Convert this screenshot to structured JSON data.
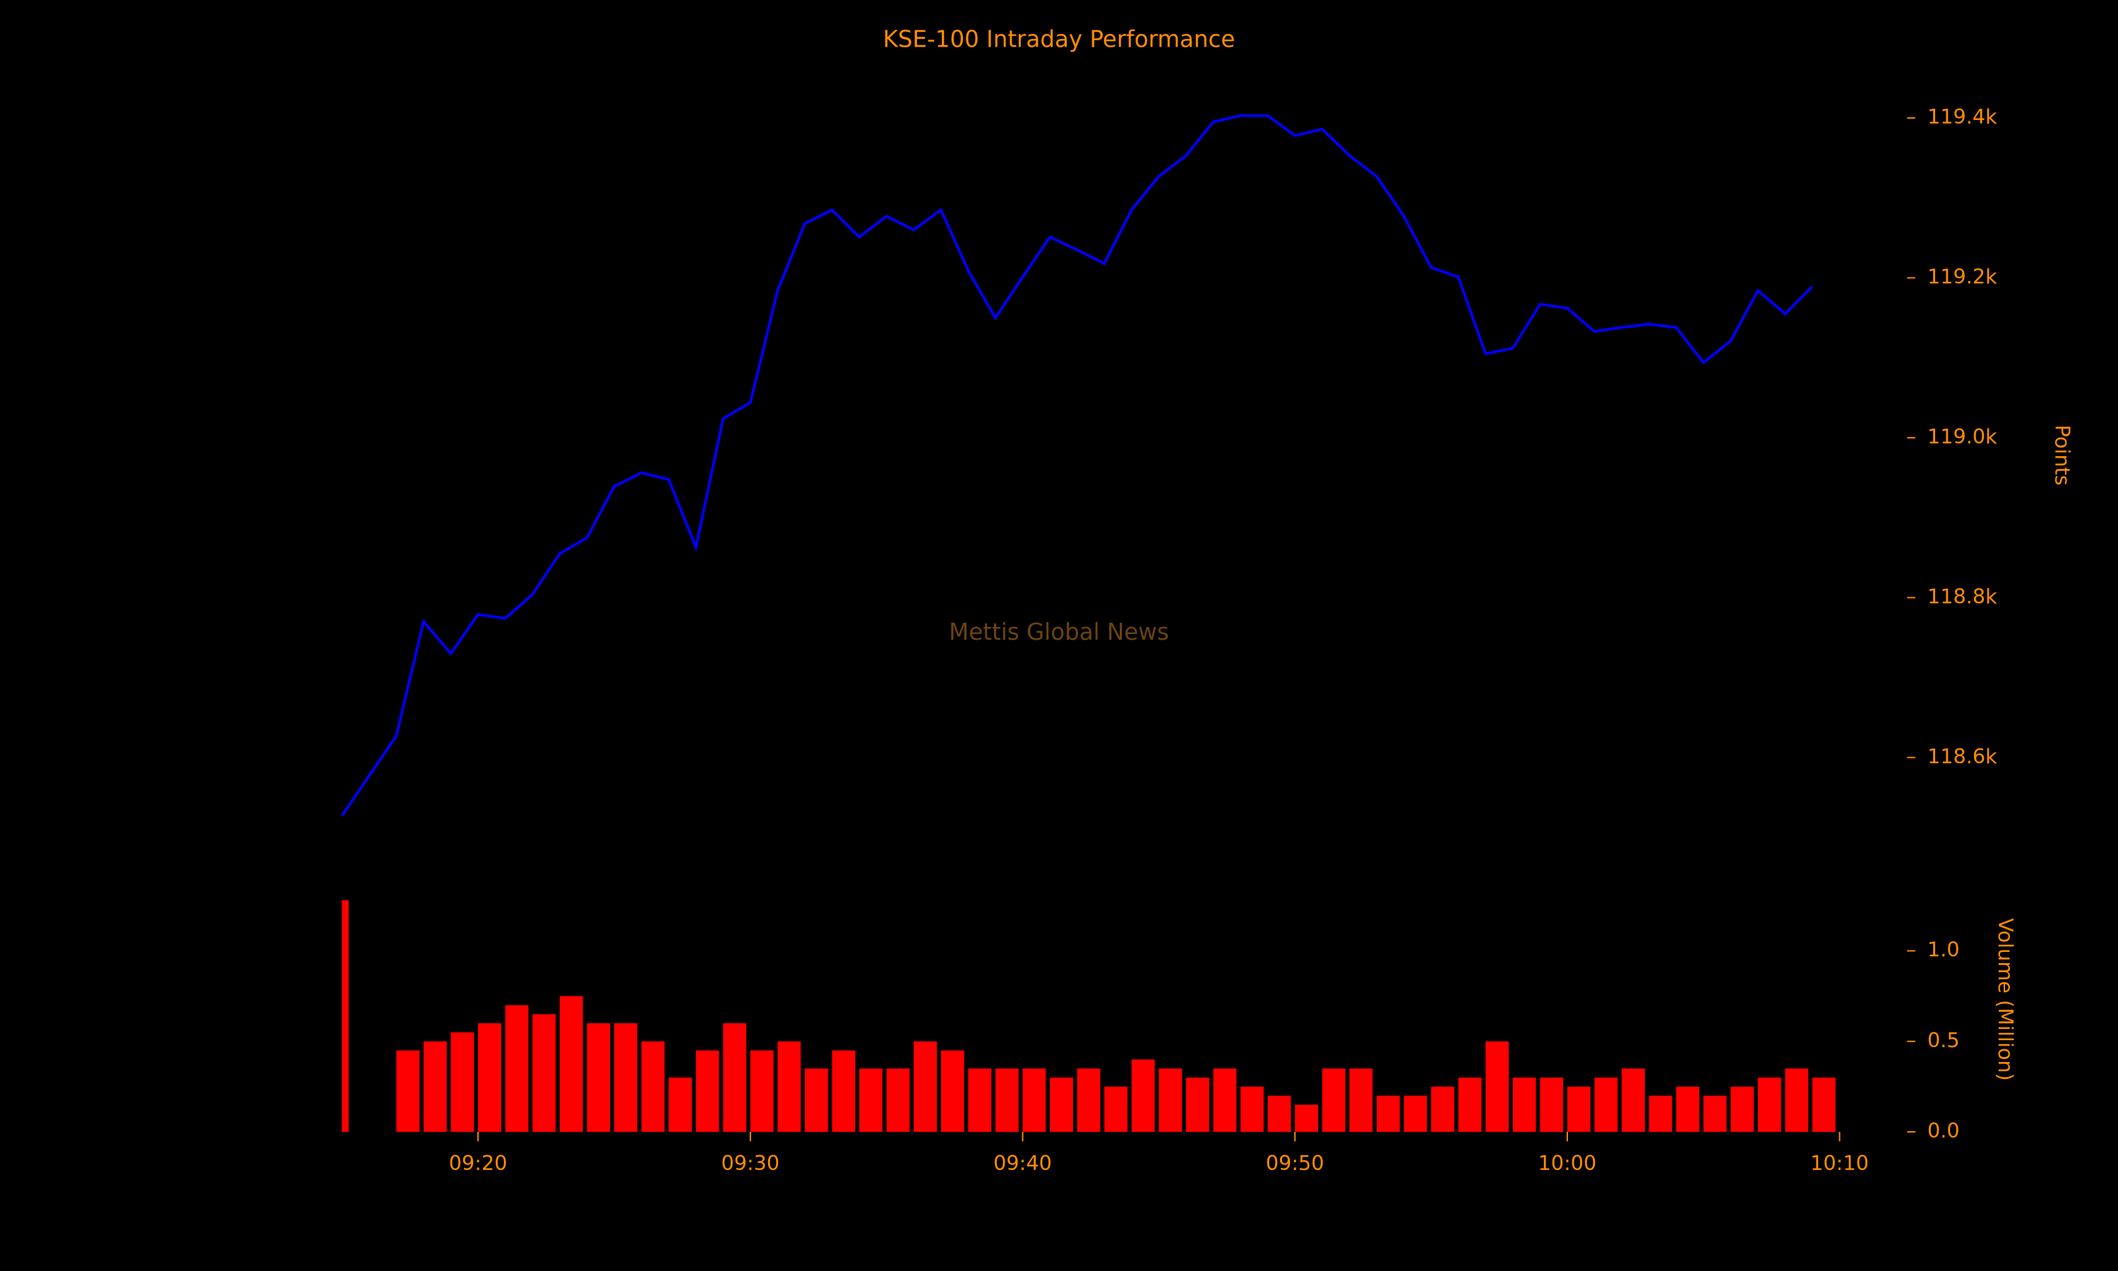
{
  "chart_data": [
    {
      "type": "line",
      "title": "KSE-100 Intraday Performance",
      "watermark": "Mettis Global News",
      "ylabel": "Points",
      "color": "#0000ff",
      "x": [
        "09:15",
        "09:17",
        "09:18",
        "09:19",
        "09:20",
        "09:21",
        "09:22",
        "09:23",
        "09:24",
        "09:25",
        "09:26",
        "09:27",
        "09:28",
        "09:29",
        "09:30",
        "09:31",
        "09:32",
        "09:33",
        "09:34",
        "09:35",
        "09:36",
        "09:37",
        "09:38",
        "09:39",
        "09:40",
        "09:41",
        "09:42",
        "09:43",
        "09:44",
        "09:45",
        "09:46",
        "09:47",
        "09:48",
        "09:49",
        "09:50",
        "09:51",
        "09:52",
        "09:53",
        "09:54",
        "09:55",
        "09:56",
        "09:57",
        "09:58",
        "09:59",
        "10:00",
        "10:01",
        "10:02",
        "10:03",
        "10:04",
        "10:05",
        "10:06",
        "10:07",
        "10:08",
        "10:09"
      ],
      "values": [
        118527,
        118627,
        118770,
        118730,
        118779,
        118774,
        118804,
        118855,
        118875,
        118939,
        118956,
        118948,
        118863,
        119024,
        119044,
        119184,
        119268,
        119285,
        119251,
        119277,
        119260,
        119285,
        119209,
        119150,
        119201,
        119251,
        119235,
        119218,
        119285,
        119327,
        119353,
        119395,
        119403,
        119403,
        119378,
        119386,
        119353,
        119327,
        119277,
        119213,
        119201,
        119105,
        119112,
        119167,
        119162,
        119133,
        119138,
        119142,
        119138,
        119094,
        119121,
        119184,
        119155,
        119189
      ],
      "ylim": [
        118500,
        119480
      ],
      "yticks": [
        {
          "value": 118600,
          "label": "118.6k"
        },
        {
          "value": 118800,
          "label": "118.8k"
        },
        {
          "value": 119000,
          "label": "119.0k"
        },
        {
          "value": 119200,
          "label": "119.2k"
        },
        {
          "value": 119400,
          "label": "119.4k"
        }
      ]
    },
    {
      "type": "bar",
      "ylabel": "Volume (Million)",
      "color": "#ff0000",
      "x": [
        "09:15",
        "09:17",
        "09:18",
        "09:19",
        "09:20",
        "09:21",
        "09:22",
        "09:23",
        "09:24",
        "09:25",
        "09:26",
        "09:27",
        "09:28",
        "09:29",
        "09:30",
        "09:31",
        "09:32",
        "09:33",
        "09:34",
        "09:35",
        "09:36",
        "09:37",
        "09:38",
        "09:39",
        "09:40",
        "09:41",
        "09:42",
        "09:43",
        "09:44",
        "09:45",
        "09:46",
        "09:47",
        "09:48",
        "09:49",
        "09:50",
        "09:51",
        "09:52",
        "09:53",
        "09:54",
        "09:55",
        "09:56",
        "09:57",
        "09:58",
        "09:59",
        "10:00",
        "10:01",
        "10:02",
        "10:03",
        "10:04",
        "10:05",
        "10:06",
        "10:07",
        "10:08",
        "10:09"
      ],
      "values": [
        1.28,
        0.45,
        0.5,
        0.55,
        0.6,
        0.7,
        0.65,
        0.75,
        0.6,
        0.6,
        0.5,
        0.3,
        0.45,
        0.6,
        0.45,
        0.5,
        0.35,
        0.45,
        0.35,
        0.35,
        0.5,
        0.45,
        0.35,
        0.35,
        0.35,
        0.3,
        0.35,
        0.25,
        0.4,
        0.35,
        0.3,
        0.35,
        0.25,
        0.2,
        0.15,
        0.35,
        0.35,
        0.2,
        0.2,
        0.25,
        0.3,
        0.5,
        0.3,
        0.3,
        0.25,
        0.3,
        0.35,
        0.2,
        0.25,
        0.2,
        0.25,
        0.3,
        0.35,
        0.3
      ],
      "ylim": [
        0,
        1.44
      ],
      "yticks": [
        {
          "value": 0,
          "label": "0.0"
        },
        0.5,
        {
          "value": 1,
          "label": "1.0"
        }
      ],
      "xlim": [
        "09:15",
        "10:10"
      ],
      "xticks": [
        "09:20",
        "09:30",
        "09:40",
        "09:50",
        "10:00",
        "10:10"
      ]
    }
  ]
}
